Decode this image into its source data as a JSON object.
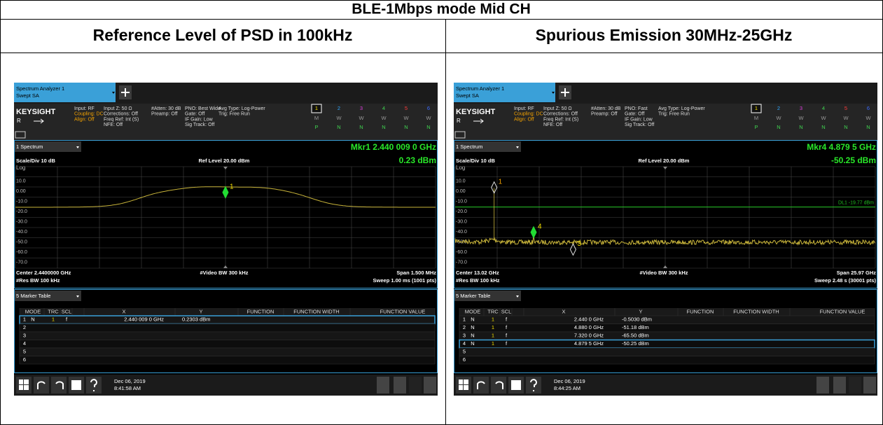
{
  "title": "BLE-1Mbps mode Mid CH",
  "panels": [
    {
      "heading": "Reference Level of PSD in 100kHz",
      "screen": {
        "tab": [
          "Spectrum Analyzer 1",
          "Swept SA"
        ],
        "brand": "KEYSIGHT",
        "mode_letter": "R",
        "settings": [
          [
            "Input: RF",
            "Coupling: DC",
            "Align: Off"
          ],
          [
            "Input Z: 50 Ω",
            "Corrections: Off",
            "Freq Ref: Int (S)",
            "NFE: Off"
          ],
          [
            "#Atten: 30 dB",
            "Preamp: Off"
          ],
          [
            "PNO: Best Wide",
            "Gate: Off",
            "IF Gain: Low",
            "Sig Track: Off"
          ],
          [
            "Avg Type: Log-Power",
            "Trig: Free Run"
          ]
        ],
        "trace_numbers": [
          "1",
          "2",
          "3",
          "4",
          "5",
          "6"
        ],
        "trace_types": [
          "M",
          "W",
          "W",
          "W",
          "W",
          "W"
        ],
        "trace_detectors": [
          "P",
          "N",
          "N",
          "N",
          "N",
          "N"
        ],
        "window_label": "1 Spectrum",
        "marker_readout": "Mkr1  2.440 009 0 GHz",
        "marker_value": "0.23 dBm",
        "scale": "Scale/Div 10 dB",
        "ref_level": "Ref Level 20.00 dBm",
        "log": "Log",
        "y_labels": [
          "10.0",
          "0.00",
          "-10.0",
          "-20.0",
          "-30.0",
          "-40.0",
          "-50.0",
          "-60.0",
          "-70.0"
        ],
        "marker_labels": [
          "1"
        ],
        "center": "Center 2.4400000 GHz",
        "rbw": "#Res BW 100 kHz",
        "vbw": "#Video BW 300 kHz",
        "span": "Span 1.500 MHz",
        "sweep": "Sweep 1.00 ms (1001 pts)",
        "table_label": "5 Marker Table",
        "table_headers": [
          "MODE",
          "TRC",
          "SCL",
          "X",
          "Y",
          "FUNCTION",
          "FUNCTION WIDTH",
          "FUNCTION VALUE"
        ],
        "rows": [
          [
            "1",
            "N",
            "1",
            "f",
            "2.440 009 0 GHz",
            "0.2303 dBm"
          ],
          [
            "2"
          ],
          [
            "3"
          ],
          [
            "4"
          ],
          [
            "5"
          ],
          [
            "6"
          ]
        ],
        "selected_row": 0,
        "date": "Dec 06, 2019",
        "time": "8:41:58 AM"
      }
    },
    {
      "heading": "Spurious Emission 30MHz-25GHz",
      "screen": {
        "tab": [
          "Spectrum Analyzer 1",
          "Swept SA"
        ],
        "brand": "KEYSIGHT",
        "mode_letter": "R",
        "settings": [
          [
            "Input: RF",
            "Coupling: DC",
            "Align: Off"
          ],
          [
            "Input Z: 50 Ω",
            "Corrections: Off",
            "Freq Ref: Int (S)",
            "NFE: Off"
          ],
          [
            "#Atten: 30 dB",
            "Preamp: Off"
          ],
          [
            "PNO: Fast",
            "Gate: Off",
            "IF Gain: Low",
            "Sig Track: Off"
          ],
          [
            "Avg Type: Log-Power",
            "Trig: Free Run"
          ]
        ],
        "trace_numbers": [
          "1",
          "2",
          "3",
          "4",
          "5",
          "6"
        ],
        "trace_types": [
          "M",
          "W",
          "W",
          "W",
          "W",
          "W"
        ],
        "trace_detectors": [
          "P",
          "N",
          "N",
          "N",
          "N",
          "N"
        ],
        "window_label": "1 Spectrum",
        "marker_readout": "Mkr4  4.879 5 GHz",
        "marker_value": "-50.25 dBm",
        "scale": "Scale/Div 10 dB",
        "ref_level": "Ref Level 20.00 dBm",
        "log": "Log",
        "y_labels": [
          "10.0",
          "0.00",
          "-10.0",
          "-20.0",
          "-30.0",
          "-40.0",
          "-50.0",
          "-60.0",
          "-70.0"
        ],
        "marker_labels": [
          "1",
          "4",
          "3"
        ],
        "display_line": "DL1 -19.77 dBm",
        "center": "Center 13.02 GHz",
        "rbw": "#Res BW 100 kHz",
        "vbw": "#Video BW 300 kHz",
        "span": "Span 25.97 GHz",
        "sweep": "Sweep 2.48 s (30001 pts)",
        "table_label": "5 Marker Table",
        "table_headers": [
          "MODE",
          "TRC",
          "SCL",
          "X",
          "Y",
          "FUNCTION",
          "FUNCTION WIDTH",
          "FUNCTION VALUE"
        ],
        "rows": [
          [
            "1",
            "N",
            "1",
            "f",
            "2.440 0 GHz",
            "-0.5030 dBm"
          ],
          [
            "2",
            "N",
            "1",
            "f",
            "4.880 0 GHz",
            "-51.18 dBm"
          ],
          [
            "3",
            "N",
            "1",
            "f",
            "7.320 0 GHz",
            "-65.50 dBm"
          ],
          [
            "4",
            "N",
            "1",
            "f",
            "4.879 5 GHz",
            "-50.25 dBm"
          ],
          [
            "5"
          ],
          [
            "6"
          ]
        ],
        "selected_row": 3,
        "date": "Dec 06, 2019",
        "time": "8:44:25 AM"
      }
    }
  ]
}
